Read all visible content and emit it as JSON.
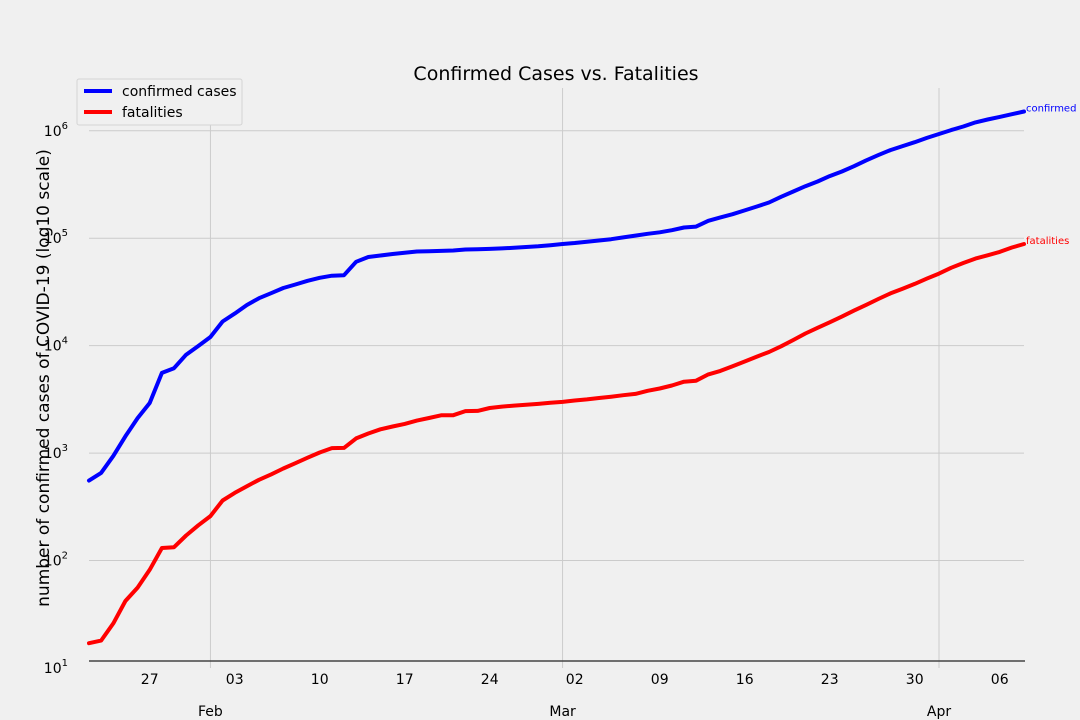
{
  "chart_data": {
    "type": "line",
    "title": "Confirmed Cases vs. Fatalities",
    "ylabel": "number of confirmed cases of COVID-19 (log10 scale)",
    "xlabel": "",
    "yscale": "log10",
    "ylim": [
      10,
      2500000
    ],
    "xlim": [
      "2020-01-22",
      "2020-04-08"
    ],
    "grid": true,
    "legend": "top-left",
    "x": [
      "2020-01-22",
      "2020-01-23",
      "2020-01-24",
      "2020-01-25",
      "2020-01-26",
      "2020-01-27",
      "2020-01-28",
      "2020-01-29",
      "2020-01-30",
      "2020-01-31",
      "2020-02-01",
      "2020-02-02",
      "2020-02-03",
      "2020-02-04",
      "2020-02-05",
      "2020-02-06",
      "2020-02-07",
      "2020-02-08",
      "2020-02-09",
      "2020-02-10",
      "2020-02-11",
      "2020-02-12",
      "2020-02-13",
      "2020-02-14",
      "2020-02-15",
      "2020-02-16",
      "2020-02-17",
      "2020-02-18",
      "2020-02-19",
      "2020-02-20",
      "2020-02-21",
      "2020-02-22",
      "2020-02-23",
      "2020-02-24",
      "2020-02-25",
      "2020-02-26",
      "2020-02-27",
      "2020-02-28",
      "2020-02-29",
      "2020-03-01",
      "2020-03-02",
      "2020-03-03",
      "2020-03-04",
      "2020-03-05",
      "2020-03-06",
      "2020-03-07",
      "2020-03-08",
      "2020-03-09",
      "2020-03-10",
      "2020-03-11",
      "2020-03-12",
      "2020-03-13",
      "2020-03-14",
      "2020-03-15",
      "2020-03-16",
      "2020-03-17",
      "2020-03-18",
      "2020-03-19",
      "2020-03-20",
      "2020-03-21",
      "2020-03-22",
      "2020-03-23",
      "2020-03-24",
      "2020-03-25",
      "2020-03-26",
      "2020-03-27",
      "2020-03-28",
      "2020-03-29",
      "2020-03-30",
      "2020-03-31",
      "2020-04-01",
      "2020-04-02",
      "2020-04-03",
      "2020-04-04",
      "2020-04-05",
      "2020-04-06",
      "2020-04-07",
      "2020-04-08"
    ],
    "series": [
      {
        "name": "confirmed cases",
        "end_label": "confirmed",
        "color": "#0000ff",
        "values": [
          555,
          654,
          941,
          1434,
          2118,
          2927,
          5578,
          6166,
          8234,
          9927,
          12038,
          16787,
          19881,
          23892,
          27635,
          30794,
          34391,
          37120,
          40150,
          42762,
          44802,
          45221,
          60368,
          66885,
          69030,
          71224,
          73258,
          75136,
          75639,
          76197,
          76819,
          78572,
          78958,
          79561,
          80406,
          81388,
          82746,
          84112,
          86011,
          88369,
          90306,
          92840,
          95120,
          97886,
          101801,
          105847,
          109821,
          113590,
          118620,
          125875,
          128343,
          145193,
          156099,
          167447,
          181546,
          197168,
          214915,
          242713,
          272167,
          304528,
          336953,
          378235,
          418045,
          467653,
          529591,
          593291,
          660706,
          720117,
          782365,
          857487,
          932605,
          1013157,
          1095917,
          1197405,
          1272115,
          1345048,
          1426096,
          1511104
        ]
      },
      {
        "name": "fatalities",
        "end_label": "fatalities",
        "color": "#ff0000",
        "values": [
          17,
          18,
          26,
          42,
          56,
          82,
          131,
          133,
          171,
          213,
          259,
          362,
          426,
          492,
          564,
          634,
          719,
          806,
          906,
          1013,
          1113,
          1118,
          1371,
          1523,
          1666,
          1770,
          1868,
          2007,
          2122,
          2247,
          2251,
          2458,
          2469,
          2629,
          2708,
          2770,
          2814,
          2872,
          2941,
          2996,
          3085,
          3160,
          3254,
          3348,
          3460,
          3558,
          3803,
          3996,
          4262,
          4615,
          4720,
          5404,
          5819,
          6440,
          7126,
          7905,
          8733,
          9867,
          11299,
          12973,
          14651,
          16505,
          18625,
          21181,
          23970,
          27198,
          30652,
          33925,
          37582,
          42107,
          46809,
          52983,
          58787,
          64606,
          69374,
          74565,
          81865,
          88338
        ]
      }
    ],
    "y_ticks": [
      {
        "value": 10,
        "base": "10",
        "exp": "1"
      },
      {
        "value": 100,
        "base": "10",
        "exp": "2"
      },
      {
        "value": 1000,
        "base": "10",
        "exp": "3"
      },
      {
        "value": 10000,
        "base": "10",
        "exp": "4"
      },
      {
        "value": 100000,
        "base": "10",
        "exp": "5"
      },
      {
        "value": 1000000,
        "base": "10",
        "exp": "6"
      }
    ],
    "x_minor_ticks": [
      {
        "date": "2020-01-27",
        "label": "27"
      },
      {
        "date": "2020-02-03",
        "label": "03"
      },
      {
        "date": "2020-02-10",
        "label": "10"
      },
      {
        "date": "2020-02-17",
        "label": "17"
      },
      {
        "date": "2020-02-24",
        "label": "24"
      },
      {
        "date": "2020-03-02",
        "label": "02"
      },
      {
        "date": "2020-03-09",
        "label": "09"
      },
      {
        "date": "2020-03-16",
        "label": "16"
      },
      {
        "date": "2020-03-23",
        "label": "23"
      },
      {
        "date": "2020-03-30",
        "label": "30"
      },
      {
        "date": "2020-04-06",
        "label": "06"
      }
    ],
    "x_major_ticks": [
      {
        "date": "2020-02-01",
        "label": "Feb"
      },
      {
        "date": "2020-03-01",
        "label": "Mar"
      },
      {
        "date": "2020-04-01",
        "label": "Apr"
      }
    ],
    "colors": {
      "background": "#f0f0f0",
      "grid": "#cbcbcb",
      "axis_line": "#444444"
    }
  }
}
